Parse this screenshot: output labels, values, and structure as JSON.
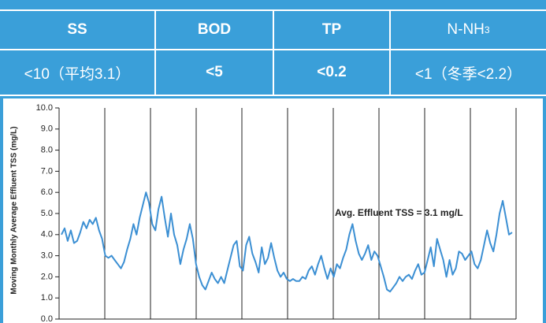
{
  "table": {
    "header": [
      "SS",
      "BOD",
      "TP",
      {
        "text": "N-NH",
        "sub": "3"
      }
    ],
    "rows": [
      [
        "<10（平均3.1）",
        "<5",
        "<0.2",
        "<1（冬季<2.2）"
      ]
    ]
  },
  "chart_data": {
    "type": "line",
    "y_label": "Moving Monthly Average Effluent TSS (mg/L)",
    "annotation": "Avg. Effluent TSS = 3.1 mg/L",
    "color": "#3b8fd3",
    "ylim": [
      0,
      10
    ],
    "yticks": [
      {
        "value": 0,
        "label": "0.0"
      },
      {
        "value": 1,
        "label": "1.0"
      },
      {
        "value": 2,
        "label": "2.0"
      },
      {
        "value": 3,
        "label": "3.0"
      },
      {
        "value": 4,
        "label": "4.0"
      },
      {
        "value": 5,
        "label": "5.0"
      },
      {
        "value": 6,
        "label": "6.0"
      },
      {
        "value": 7,
        "label": "7.0"
      },
      {
        "value": 8,
        "label": "8.0"
      },
      {
        "value": 9,
        "label": "9.0"
      },
      {
        "value": 10,
        "label": "10.0"
      }
    ],
    "values": [
      4.0,
      4.3,
      3.7,
      4.2,
      3.6,
      3.7,
      4.1,
      4.6,
      4.3,
      4.7,
      4.5,
      4.8,
      4.2,
      3.8,
      3.0,
      2.9,
      3.0,
      2.8,
      2.6,
      2.4,
      2.7,
      3.3,
      3.8,
      4.5,
      4.0,
      4.8,
      5.4,
      6.0,
      5.5,
      4.5,
      4.2,
      5.2,
      5.8,
      4.8,
      3.9,
      5.0,
      4.0,
      3.5,
      2.6,
      3.3,
      3.8,
      4.5,
      3.8,
      2.6,
      2.0,
      1.6,
      1.4,
      1.8,
      2.2,
      1.9,
      1.7,
      2.0,
      1.7,
      2.3,
      2.9,
      3.5,
      3.7,
      2.5,
      2.3,
      3.5,
      3.9,
      3.1,
      2.7,
      2.2,
      3.4,
      2.6,
      2.9,
      3.6,
      2.9,
      2.3,
      2.0,
      2.2,
      1.9,
      1.8,
      1.9,
      1.8,
      1.8,
      2.0,
      1.9,
      2.3,
      2.5,
      2.1,
      2.6,
      3.0,
      2.4,
      1.9,
      2.4,
      2.0,
      2.6,
      2.4,
      2.9,
      3.3,
      4.0,
      4.5,
      3.7,
      3.1,
      2.8,
      3.1,
      3.5,
      2.8,
      3.2,
      3.0,
      2.5,
      2.0,
      1.4,
      1.3,
      1.5,
      1.7,
      2.0,
      1.8,
      2.0,
      2.1,
      1.9,
      2.3,
      2.6,
      2.1,
      2.2,
      2.8,
      3.4,
      2.5,
      3.8,
      3.3,
      2.8,
      2.0,
      2.8,
      2.1,
      2.4,
      3.2,
      3.1,
      2.8,
      3.0,
      3.2,
      2.6,
      2.4,
      2.8,
      3.5,
      4.2,
      3.6,
      3.2,
      4.0,
      5.0,
      5.6,
      4.8,
      4.0,
      4.1
    ]
  }
}
